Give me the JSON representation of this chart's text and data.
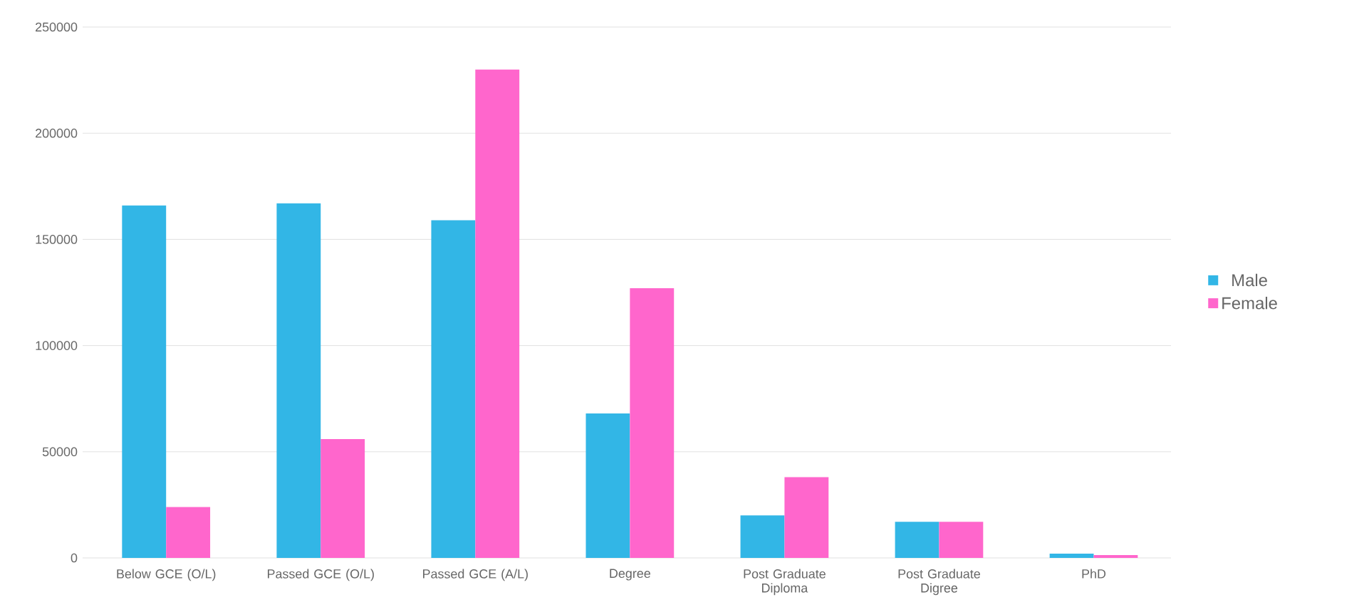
{
  "chart_data": {
    "type": "bar",
    "categories": [
      "Below GCE (O/L)",
      "Passed  GCE (O/L)",
      "Passed  GCE (A/L)",
      "Degree",
      "Post Graduate Diploma",
      "Post Graduate Digree",
      "PhD"
    ],
    "series": [
      {
        "name": "Male",
        "color": "#32b6e6",
        "values": [
          166000,
          167000,
          159000,
          68000,
          20000,
          17000,
          2000
        ]
      },
      {
        "name": "Female",
        "color": "#ff66cc",
        "values": [
          24000,
          56000,
          230000,
          127000,
          38000,
          17000,
          1300
        ]
      }
    ],
    "ylim": [
      0,
      250000
    ],
    "yticks": [
      0,
      50000,
      100000,
      150000,
      200000,
      250000
    ],
    "grid": "y",
    "legend": "right"
  }
}
